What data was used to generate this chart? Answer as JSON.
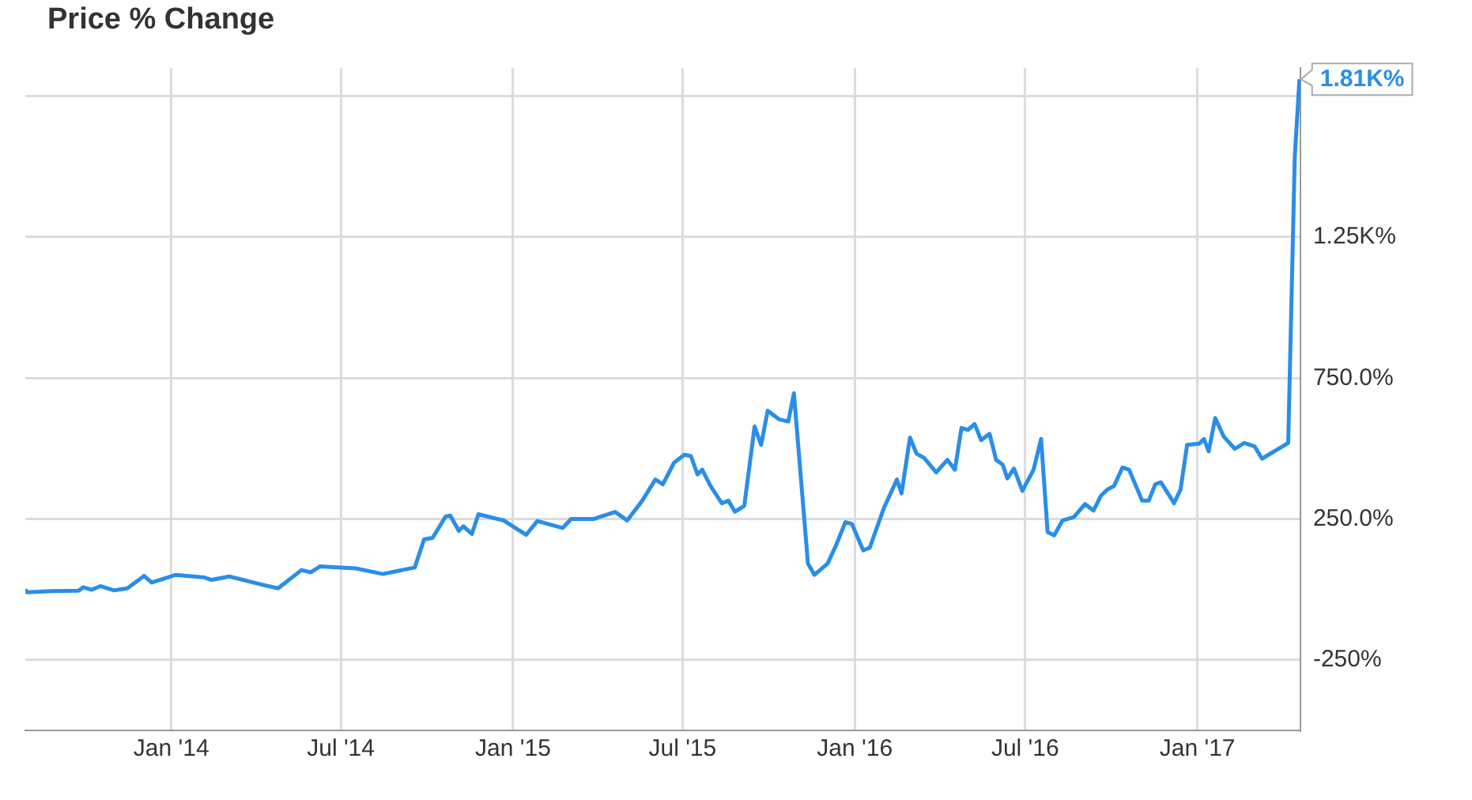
{
  "chart_data": {
    "type": "line",
    "title": "Price % Change",
    "x": [
      "2013-07-29",
      "2013-07-31",
      "2013-08-26",
      "2013-09-24",
      "2013-09-29",
      "2013-10-08",
      "2013-10-17",
      "2013-11-01",
      "2013-11-15",
      "2013-12-03",
      "2013-12-11",
      "2014-01-06",
      "2014-02-05",
      "2014-02-13",
      "2014-03-04",
      "2014-04-08",
      "2014-04-25",
      "2014-05-20",
      "2014-05-30",
      "2014-06-09",
      "2014-07-17",
      "2014-08-15",
      "2014-09-18",
      "2014-09-28",
      "2014-10-07",
      "2014-10-21",
      "2014-10-26",
      "2014-11-04",
      "2014-11-09",
      "2014-11-18",
      "2014-11-25",
      "2014-12-22",
      "2015-01-15",
      "2015-01-27",
      "2015-02-23",
      "2015-03-04",
      "2015-03-28",
      "2015-04-20",
      "2015-05-03",
      "2015-05-19",
      "2015-06-02",
      "2015-06-10",
      "2015-06-22",
      "2015-07-03",
      "2015-07-10",
      "2015-07-17",
      "2015-07-22",
      "2015-07-31",
      "2015-08-12",
      "2015-08-19",
      "2015-08-26",
      "2015-09-05",
      "2015-09-16",
      "2015-09-23",
      "2015-09-30",
      "2015-10-12",
      "2015-10-22",
      "2015-10-28",
      "2015-11-12",
      "2015-11-19",
      "2015-12-03",
      "2015-12-12",
      "2015-12-22",
      "2015-12-29",
      "2016-01-10",
      "2016-01-17",
      "2016-02-01",
      "2016-02-15",
      "2016-02-20",
      "2016-02-29",
      "2016-03-07",
      "2016-03-15",
      "2016-03-28",
      "2016-04-09",
      "2016-04-17",
      "2016-04-24",
      "2016-05-01",
      "2016-05-08",
      "2016-05-15",
      "2016-05-24",
      "2016-05-31",
      "2016-06-07",
      "2016-06-12",
      "2016-06-19",
      "2016-06-28",
      "2016-07-10",
      "2016-07-18",
      "2016-07-25",
      "2016-08-01",
      "2016-08-10",
      "2016-08-22",
      "2016-09-03",
      "2016-09-12",
      "2016-09-20",
      "2016-09-27",
      "2016-10-04",
      "2016-10-13",
      "2016-10-20",
      "2016-11-03",
      "2016-11-10",
      "2016-11-17",
      "2016-11-23",
      "2016-12-02",
      "2016-12-07",
      "2016-12-14",
      "2016-12-21",
      "2017-01-03",
      "2017-01-08",
      "2017-01-13",
      "2017-01-20",
      "2017-01-29",
      "2017-02-10",
      "2017-02-20",
      "2017-03-03",
      "2017-03-11",
      "2017-04-08",
      "2017-04-15",
      "2017-04-20"
    ],
    "series": [
      {
        "color": "#2a8ee8",
        "values": [
          0,
          -10,
          -6,
          -4,
          8,
          -1,
          12,
          -3,
          4,
          48,
          25,
          52,
          43,
          34,
          46,
          17,
          4,
          69,
          61,
          82,
          75,
          55,
          78,
          178,
          183,
          259,
          262,
          208,
          224,
          197,
          267,
          245,
          194,
          243,
          218,
          250,
          250,
          275,
          245,
          315,
          390,
          373,
          450,
          478,
          473,
          408,
          425,
          367,
          306,
          315,
          276,
          297,
          578,
          513,
          634,
          604,
          596,
          696,
          92,
          52,
          92,
          157,
          239,
          232,
          139,
          148,
          288,
          390,
          341,
          539,
          482,
          467,
          415,
          460,
          425,
          573,
          566,
          587,
          530,
          552,
          460,
          443,
          394,
          429,
          350,
          425,
          534,
          204,
          192,
          245,
          257,
          303,
          280,
          333,
          355,
          367,
          433,
          425,
          315,
          315,
          373,
          380,
          333,
          306,
          355,
          513,
          517,
          534,
          490,
          608,
          543,
          499,
          520,
          508,
          464,
          520,
          1534,
          1810
        ]
      }
    ],
    "xlim": [
      "2013-07-29",
      "2017-04-21"
    ],
    "xticks": [
      {
        "value": "2014-01-01",
        "label": "Jan '14"
      },
      {
        "value": "2014-07-01",
        "label": "Jul '14"
      },
      {
        "value": "2015-01-01",
        "label": "Jan '15"
      },
      {
        "value": "2015-07-01",
        "label": "Jul '15"
      },
      {
        "value": "2016-01-01",
        "label": "Jan '16"
      },
      {
        "value": "2016-07-01",
        "label": "Jul '16"
      },
      {
        "value": "2017-01-01",
        "label": "Jan '17"
      }
    ],
    "ylim": [
      -500,
      1850
    ],
    "yticks": [
      {
        "value": -250,
        "label": "-250%"
      },
      {
        "value": 250,
        "label": "250.0%"
      },
      {
        "value": 750,
        "label": "750.0%"
      },
      {
        "value": 1250,
        "label": "1.25K%"
      },
      {
        "value": 1750,
        "label": null
      }
    ],
    "annotations": [
      {
        "text": "1.81K%",
        "x": "2017-04-20",
        "y": 1810
      }
    ],
    "grid": true,
    "legend": false,
    "marker": "none",
    "line_style": "solid"
  }
}
